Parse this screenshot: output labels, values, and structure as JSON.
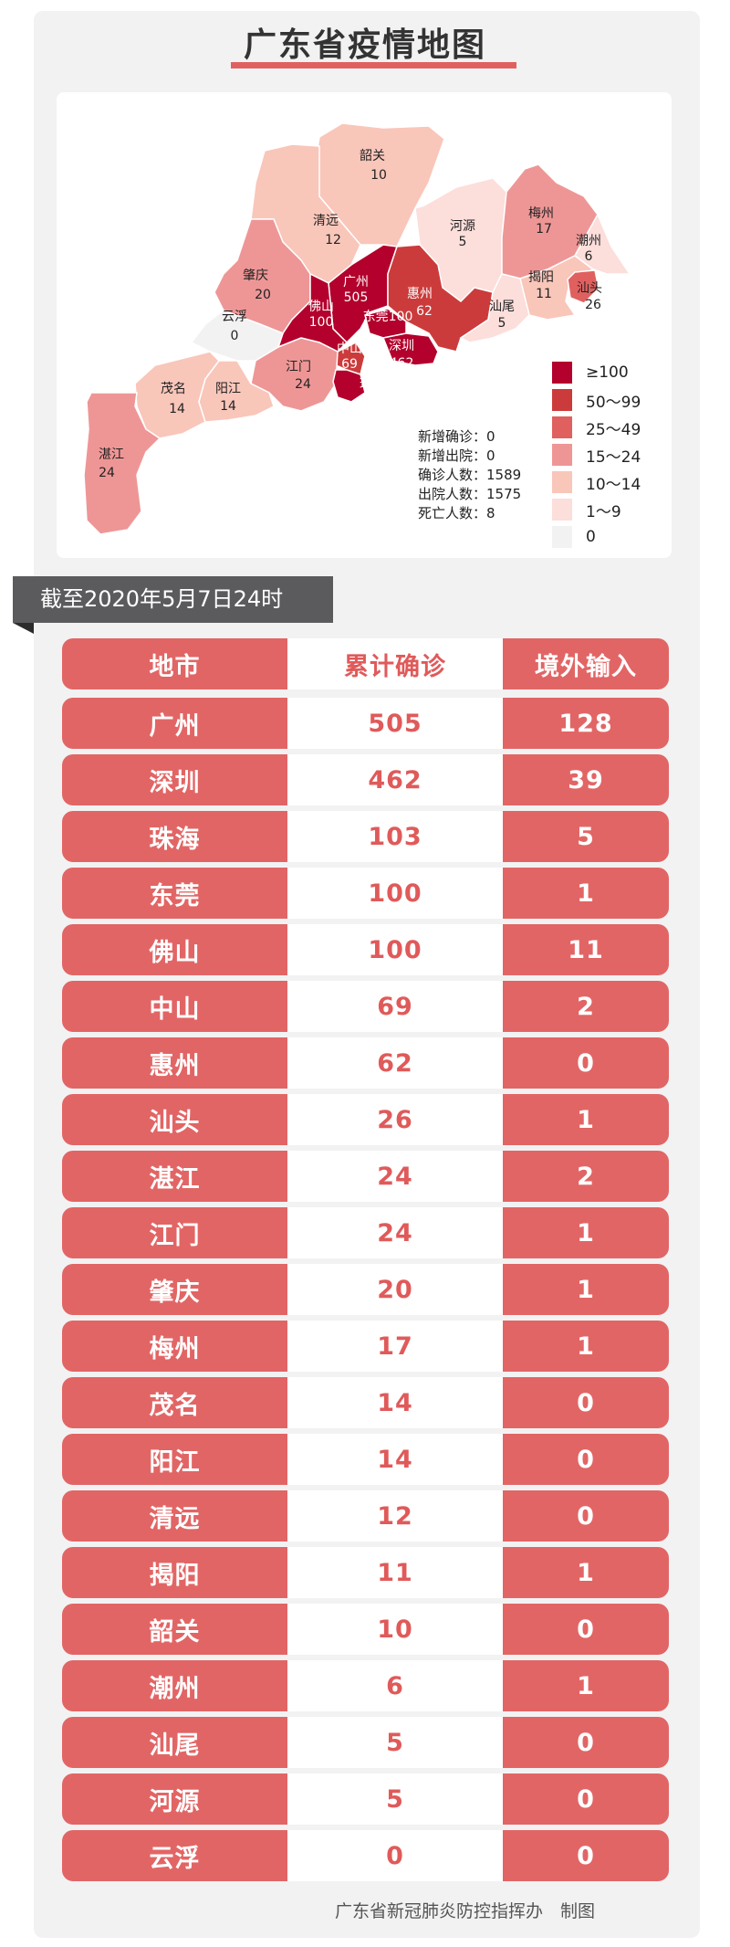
{
  "title": "广东省疫情地图",
  "map": {
    "regions": [
      {
        "name": "韶关",
        "value": "10",
        "band": "10-14"
      },
      {
        "name": "清远",
        "value": "12",
        "band": "10-14"
      },
      {
        "name": "河源",
        "value": "5",
        "band": "1-9"
      },
      {
        "name": "梅州",
        "value": "17",
        "band": "15-24"
      },
      {
        "name": "潮州",
        "value": "6",
        "band": "1-9"
      },
      {
        "name": "揭阳",
        "value": "11",
        "band": "10-14"
      },
      {
        "name": "汕头",
        "value": "26",
        "band": "25-49"
      },
      {
        "name": "肇庆",
        "value": "20",
        "band": "15-24"
      },
      {
        "name": "广州",
        "value": "505",
        "band": ">=100"
      },
      {
        "name": "惠州",
        "value": "62",
        "band": "50-99"
      },
      {
        "name": "佛山",
        "value": "100",
        "band": ">=100"
      },
      {
        "name": "东莞",
        "value": "100",
        "band": ">=100"
      },
      {
        "name": "汕尾",
        "value": "5",
        "band": "1-9"
      },
      {
        "name": "云浮",
        "value": "0",
        "band": "0"
      },
      {
        "name": "深圳",
        "value": "462",
        "band": ">=100"
      },
      {
        "name": "中山",
        "value": "69",
        "band": "50-99"
      },
      {
        "name": "江门",
        "value": "24",
        "band": "15-24"
      },
      {
        "name": "珠海",
        "value": "103",
        "band": ">=100"
      },
      {
        "name": "茂名",
        "value": "14",
        "band": "10-14"
      },
      {
        "name": "阳江",
        "value": "14",
        "band": "10-14"
      },
      {
        "name": "湛江",
        "value": "24",
        "band": "15-24"
      }
    ],
    "stats": [
      "新增确诊：0",
      "新增出院：0",
      "确诊人数：1589",
      "出院人数：1575",
      "死亡人数：8"
    ],
    "legend": [
      {
        "label": "≥100",
        "color": "#b3002c"
      },
      {
        "label": "50～99",
        "color": "#cc3b3b"
      },
      {
        "label": "25～49",
        "color": "#e0605f"
      },
      {
        "label": "15～24",
        "color": "#ee9696"
      },
      {
        "label": "10～14",
        "color": "#f9c6ba"
      },
      {
        "label": "1～9",
        "color": "#fcdedb"
      },
      {
        "label": "0",
        "color": "#f2f2f2"
      }
    ]
  },
  "date_label": "截至2020年5月7日24时",
  "table": {
    "headers": [
      "地市",
      "累计确诊",
      "境外输入"
    ],
    "rows": [
      [
        "广州",
        "505",
        "128"
      ],
      [
        "深圳",
        "462",
        "39"
      ],
      [
        "珠海",
        "103",
        "5"
      ],
      [
        "东莞",
        "100",
        "1"
      ],
      [
        "佛山",
        "100",
        "11"
      ],
      [
        "中山",
        "69",
        "2"
      ],
      [
        "惠州",
        "62",
        "0"
      ],
      [
        "汕头",
        "26",
        "1"
      ],
      [
        "湛江",
        "24",
        "2"
      ],
      [
        "江门",
        "24",
        "1"
      ],
      [
        "肇庆",
        "20",
        "1"
      ],
      [
        "梅州",
        "17",
        "1"
      ],
      [
        "茂名",
        "14",
        "0"
      ],
      [
        "阳江",
        "14",
        "0"
      ],
      [
        "清远",
        "12",
        "0"
      ],
      [
        "揭阳",
        "11",
        "1"
      ],
      [
        "韶关",
        "10",
        "0"
      ],
      [
        "潮州",
        "6",
        "1"
      ],
      [
        "汕尾",
        "5",
        "0"
      ],
      [
        "河源",
        "5",
        "0"
      ],
      [
        "云浮",
        "0",
        "0"
      ]
    ]
  },
  "footer": "广东省新冠肺炎防控指挥办　制图"
}
